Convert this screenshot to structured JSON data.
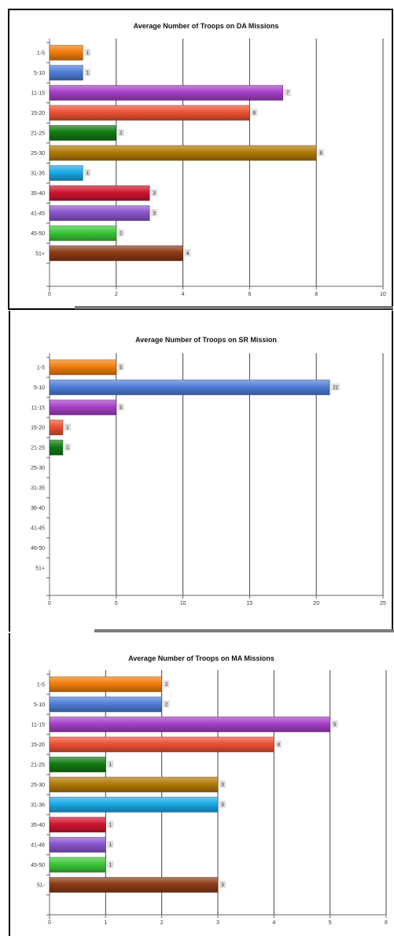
{
  "chart_data": [
    {
      "type": "bar",
      "orientation": "horizontal",
      "title": "Average Number of Troops on DA Missions",
      "categories": [
        "1-5",
        "5-10",
        "11-15",
        "15-20",
        "21-25",
        "25-30",
        "31-35",
        "35-40",
        "41-45",
        "45-50",
        "51+"
      ],
      "values": [
        1,
        1,
        7,
        6,
        2,
        8,
        1,
        3,
        3,
        2,
        4
      ],
      "data_labels": [
        "1",
        "1",
        "7",
        "6",
        "2",
        "8",
        "1",
        "3",
        "3",
        "2",
        "4"
      ],
      "xlim": [
        0,
        10
      ],
      "xticks": [
        0,
        2,
        4,
        6,
        8,
        10
      ],
      "xtick_labels": [
        "0",
        "2",
        "4",
        "6",
        "8",
        "10"
      ],
      "colors": [
        "#f07d0c",
        "#4e7ed8",
        "#a63fc8",
        "#ec5133",
        "#127b12",
        "#b07a06",
        "#1aa9e6",
        "#d01530",
        "#8a55cf",
        "#3bc638",
        "#8b3a16"
      ],
      "grid": true,
      "legend": "none"
    },
    {
      "type": "bar",
      "orientation": "horizontal",
      "title": "Average Number of Troops on SR Mission",
      "categories": [
        "1-5",
        "5-10",
        "11-15",
        "15-20",
        "21-25",
        "25-30",
        "31-35",
        "36-40",
        "41-45",
        "46-50",
        "51+"
      ],
      "values": [
        5,
        21,
        5,
        1,
        1,
        0,
        0,
        0,
        0,
        0,
        0
      ],
      "data_labels": [
        "5",
        "21",
        "5",
        "1",
        "1",
        "",
        "",
        "",
        "",
        "",
        ""
      ],
      "xlim": [
        0,
        25
      ],
      "xticks": [
        0,
        5,
        10,
        15,
        20,
        25
      ],
      "xtick_labels": [
        "0",
        "5",
        "10",
        "15",
        "20",
        "25"
      ],
      "colors": [
        "#f07d0c",
        "#4e7ed8",
        "#a63fc8",
        "#ec5133",
        "#127b12",
        "#b07a06",
        "#1aa9e6",
        "#d01530",
        "#8a55cf",
        "#3bc638",
        "#8b3a16"
      ],
      "grid": true,
      "legend": "none"
    },
    {
      "type": "bar",
      "orientation": "horizontal",
      "title": "Average Number of Troops on MA Missions",
      "categories": [
        "1-5",
        "5-10",
        "11-15",
        "15-20",
        "21-25",
        "25-30",
        "31-36",
        "35-40",
        "41-46",
        "45-50",
        "51-"
      ],
      "values": [
        2,
        2,
        5,
        4,
        1,
        3,
        3,
        1,
        1,
        1,
        3
      ],
      "data_labels": [
        "2",
        "2",
        "5",
        "4",
        "1",
        "3",
        "3",
        "1",
        "1",
        "1",
        "3"
      ],
      "xlim": [
        0,
        6
      ],
      "xticks": [
        0,
        1,
        2,
        3,
        4,
        5,
        6
      ],
      "xtick_labels": [
        "0",
        "1",
        "2",
        "3",
        "4",
        "5",
        "6"
      ],
      "colors": [
        "#f07d0c",
        "#4e7ed8",
        "#a63fc8",
        "#ec5133",
        "#127b12",
        "#b07a06",
        "#1aa9e6",
        "#d01530",
        "#8a55cf",
        "#3bc638",
        "#8b3a16"
      ],
      "grid": true,
      "legend": "none"
    }
  ]
}
